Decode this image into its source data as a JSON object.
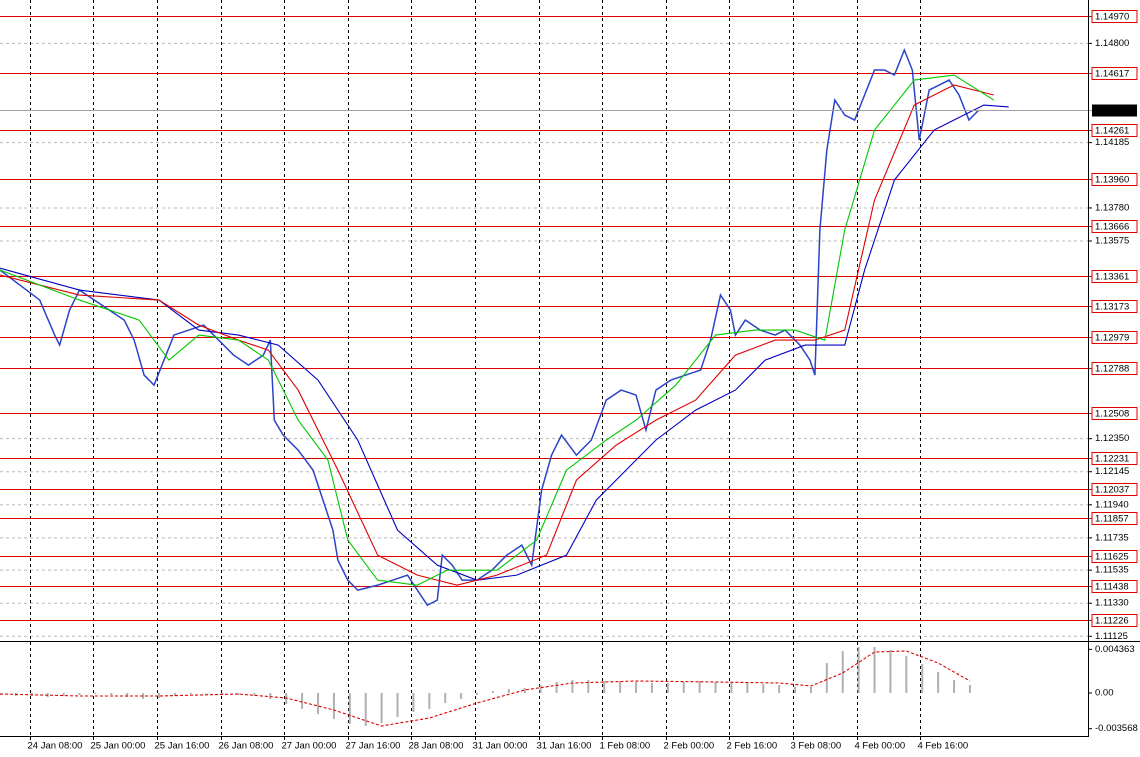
{
  "chart_data": [
    {
      "type": "line",
      "xlim": [
        0,
        273.7
      ],
      "ylim": [
        1.11102,
        1.15069
      ],
      "yticks": [
        {
          "value": 1.148,
          "label": "1.14800"
        },
        1.14185,
        {
          "value": 1.1378,
          "label": "1.13780"
        },
        1.13575,
        {
          "value": 1.1235,
          "label": "1.12350"
        },
        1.12145,
        {
          "value": 1.1194,
          "label": "1.11940"
        },
        1.11735,
        1.11535,
        {
          "value": 1.1133,
          "label": "1.11330"
        },
        1.11125
      ],
      "grid": true,
      "levels": [
        {
          "value": 1.1497,
          "label": "1.14970"
        },
        1.14617,
        1.14261,
        {
          "value": 1.1396,
          "label": "1.13960"
        },
        1.13666,
        1.13361,
        1.13173,
        1.12979,
        1.12788,
        1.12508,
        1.12231,
        1.12037,
        1.11857,
        1.11625,
        1.11438,
        1.11226
      ],
      "level_color": "#e00000",
      "price_label": "1.14387",
      "series": [
        {
          "color": "#2a44c8",
          "style": "solid",
          "x": [
            0,
            5,
            10,
            13.75,
            15,
            17.5,
            20,
            23.75,
            27.5,
            31.25,
            33.75,
            36.25,
            38.75,
            41.25,
            43.75,
            47.5,
            51.25,
            55,
            58.75,
            62.5,
            66.25,
            68,
            69,
            71.25,
            75,
            78.75,
            81.25,
            83.75,
            85,
            87.5,
            90,
            95,
            98.75,
            102.5,
            105,
            107.5,
            110,
            111.25,
            113.75,
            116.25,
            120,
            123.75,
            127.5,
            131.25,
            133.75,
            136.25,
            138.75,
            141.25,
            145,
            148.75,
            152.5,
            156.25,
            160,
            162.5,
            165,
            168.75,
            172.5,
            176.25,
            178.75,
            181.25,
            183.75,
            185,
            187.5,
            191.25,
            195,
            197.5,
            201.25,
            203.75,
            205,
            206.25,
            208,
            210,
            212.5,
            215,
            217.5,
            220,
            222.5,
            225,
            227.5,
            229.5,
            231.25,
            233.75,
            236.25,
            238.75,
            241.25,
            243.75,
            246.25
          ],
          "values": [
            1.13395,
            1.13302,
            1.13209,
            1.12992,
            1.1293,
            1.13147,
            1.13271,
            1.13209,
            1.13147,
            1.13085,
            1.12961,
            1.12744,
            1.12682,
            1.12837,
            1.12992,
            1.13023,
            1.13054,
            1.12961,
            1.12868,
            1.12806,
            1.12868,
            1.12961,
            1.12465,
            1.12372,
            1.12279,
            1.12155,
            1.11969,
            1.11783,
            1.11597,
            1.11473,
            1.11411,
            1.11442,
            1.11473,
            1.11504,
            1.11411,
            1.11318,
            1.11349,
            1.11628,
            1.11566,
            1.11473,
            1.11473,
            1.11535,
            1.11628,
            1.1169,
            1.11566,
            1.12031,
            1.12248,
            1.12372,
            1.12248,
            1.12341,
            1.12589,
            1.12651,
            1.1262,
            1.12403,
            1.12651,
            1.12713,
            1.12744,
            1.12775,
            1.12961,
            1.1324,
            1.13147,
            1.12992,
            1.13085,
            1.13023,
            1.12992,
            1.13023,
            1.1293,
            1.12837,
            1.12744,
            1.13643,
            1.14139,
            1.14449,
            1.14356,
            1.14325,
            1.1448,
            1.14635,
            1.14635,
            1.14604,
            1.14759,
            1.14635,
            1.14201,
            1.14511,
            1.14542,
            1.14573,
            1.1448,
            1.14325,
            1.14387
          ]
        },
        {
          "color": "#0000c0",
          "style": "solid",
          "x": [
            0,
            20,
            40,
            50,
            60,
            70,
            80,
            90,
            100,
            110,
            120,
            130,
            142.5,
            150,
            165,
            175,
            185,
            192.5,
            202.5,
            212.5,
            217.5,
            225,
            235,
            242.5,
            247.5,
            253.75
          ],
          "values": [
            1.13407,
            1.13271,
            1.13209,
            1.13023,
            1.12992,
            1.1293,
            1.12713,
            1.12341,
            1.11783,
            1.11566,
            1.11473,
            1.11504,
            1.11628,
            1.11969,
            1.12341,
            1.12527,
            1.12651,
            1.12837,
            1.1293,
            1.1293,
            1.13395,
            1.13953,
            1.14263,
            1.14356,
            1.14418,
            1.14406
          ]
        },
        {
          "color": "#e00000",
          "style": "solid",
          "x": [
            0,
            20,
            40,
            50,
            60,
            67.5,
            75,
            85,
            95,
            105,
            115,
            125,
            137.5,
            145,
            155,
            165,
            175,
            185,
            195,
            205,
            212.5,
            220,
            230,
            240,
            250
          ],
          "values": [
            1.13364,
            1.1324,
            1.13209,
            1.13054,
            1.12961,
            1.12899,
            1.12651,
            1.12155,
            1.11628,
            1.11504,
            1.11442,
            1.11504,
            1.11628,
            1.12093,
            1.1231,
            1.12465,
            1.12589,
            1.12868,
            1.12961,
            1.12961,
            1.13023,
            1.13829,
            1.14418,
            1.14542,
            1.1448
          ]
        },
        {
          "color": "#00c800",
          "style": "solid",
          "x": [
            0,
            20,
            35,
            42.5,
            50,
            60,
            67.5,
            75,
            82.5,
            87.5,
            95,
            105,
            112.5,
            125,
            135,
            142.5,
            152.5,
            160,
            170,
            180,
            190,
            200,
            207.5,
            212.5,
            220,
            230,
            240,
            250
          ],
          "values": [
            1.13395,
            1.13209,
            1.13085,
            1.12837,
            1.12992,
            1.12961,
            1.12837,
            1.12465,
            1.12217,
            1.11721,
            1.11473,
            1.11442,
            1.11535,
            1.11535,
            1.11721,
            1.12155,
            1.12341,
            1.12465,
            1.12682,
            1.12992,
            1.13023,
            1.13023,
            1.12961,
            1.13643,
            1.14263,
            1.14573,
            1.14604,
            1.14449
          ]
        }
      ]
    },
    {
      "type": "line",
      "xlim": [
        0,
        273.7
      ],
      "ylim": [
        -0.0043,
        0.0051
      ],
      "yticks": [
        0.004363,
        {
          "value": 0,
          "label": "0.00"
        },
        -0.003568
      ],
      "xticks": [
        {
          "value": 7.5,
          "label": "24 Jan 08:00"
        },
        {
          "value": 23.5,
          "label": "25 Jan 00:00"
        },
        {
          "value": 39.5,
          "label": "25 Jan 16:00"
        },
        {
          "value": 55.5,
          "label": "26 Jan 08:00"
        },
        {
          "value": 71.5,
          "label": "27 Jan 00:00"
        },
        {
          "value": 87.5,
          "label": "27 Jan 16:00"
        },
        {
          "value": 103.5,
          "label": "28 Jan 08:00"
        },
        {
          "value": 119.5,
          "label": "31 Jan 00:00"
        },
        {
          "value": 135.5,
          "label": "31 Jan 16:00"
        },
        {
          "value": 151.5,
          "label": "1 Feb 08:00"
        },
        {
          "value": 167.5,
          "label": "2 Feb 00:00"
        },
        {
          "value": 183.5,
          "label": "2 Feb 16:00"
        },
        {
          "value": 199.5,
          "label": "3 Feb 08:00"
        },
        {
          "value": 215.5,
          "label": "4 Feb 00:00"
        },
        {
          "value": 231.5,
          "label": "4 Feb 16:00"
        }
      ],
      "series": [
        {
          "color": "#b0b0b0",
          "style": "bars",
          "x": [
            0,
            4,
            8,
            12,
            16,
            20,
            24,
            28,
            32,
            36,
            40,
            44,
            48,
            52,
            56,
            60,
            64,
            68,
            72,
            76,
            80,
            84,
            88,
            92,
            96,
            100,
            104,
            108,
            112,
            116,
            120,
            124,
            128,
            132,
            136,
            140,
            144,
            148,
            152,
            156,
            160,
            164,
            168,
            172,
            176,
            180,
            184,
            188,
            192,
            196,
            200,
            204,
            208,
            212,
            216,
            220,
            224,
            228,
            232,
            236,
            240,
            244
          ],
          "values": [
            -0.0002,
            -0.0003,
            -0.0003,
            -0.0004,
            -0.0003,
            -0.0002,
            -0.0001,
            -0.0002,
            -0.0004,
            -0.0006,
            -0.0005,
            -0.0003,
            -0.0001,
            0,
            -0.0001,
            -0.0002,
            -0.0003,
            -0.0006,
            -0.0011,
            -0.0016,
            -0.0021,
            -0.0026,
            -0.0031,
            -0.0033,
            -0.003,
            -0.0024,
            -0.0019,
            -0.0016,
            -0.001,
            -0.0006,
            -0.0002,
            0.0002,
            0.0004,
            0.0005,
            0.0008,
            0.0011,
            0.0013,
            0.0013,
            0.0012,
            0.0012,
            0.0011,
            0.001,
            0.001,
            0.0011,
            0.0012,
            0.0011,
            0.0011,
            0.001,
            0.0009,
            0.0008,
            0.0006,
            0.0006,
            0.003,
            0.0042,
            0.0046,
            0.0046,
            0.0043,
            0.0037,
            0.0029,
            0.0021,
            0.0013,
            0.0008
          ]
        },
        {
          "color": "#e00000",
          "style": "dashed",
          "x": [
            0,
            20,
            40,
            60,
            72,
            84,
            96,
            108,
            120,
            132,
            144,
            160,
            180,
            196,
            204,
            212,
            220,
            228,
            236,
            244
          ],
          "values": [
            -0.0001,
            -0.0003,
            -0.0003,
            -0.0001,
            -0.0005,
            -0.0017,
            -0.0033,
            -0.0025,
            -0.001,
            0.0003,
            0.001,
            0.0012,
            0.0011,
            0.001,
            0.0007,
            0.002,
            0.0041,
            0.0042,
            0.003,
            0.0012
          ]
        }
      ]
    }
  ]
}
